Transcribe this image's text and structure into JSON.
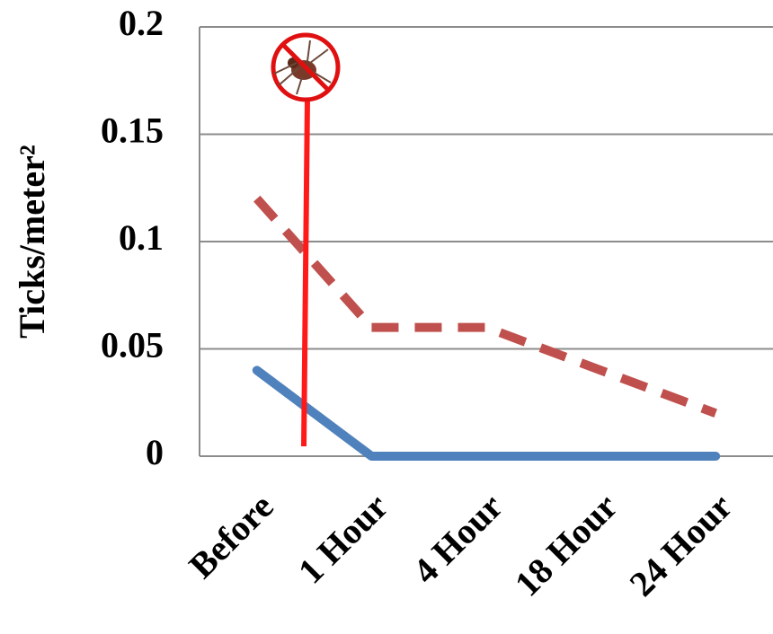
{
  "chart_data": {
    "type": "line",
    "y_label": "Ticks/meter²",
    "categories": [
      "Before",
      "1 Hour",
      "4 Hour",
      "18 Hour",
      "24 Hour"
    ],
    "series": [
      {
        "color": "#4f81bd",
        "style": "solid",
        "values": [
          0.04,
          0,
          0,
          0,
          0
        ]
      },
      {
        "color": "#c0504d",
        "style": "dashed",
        "values": [
          0.12,
          0.06,
          0.06,
          0.04,
          0.02
        ]
      }
    ],
    "ylim": [
      0,
      0.2
    ],
    "yticks": [
      0,
      0.05,
      0.1,
      0.15,
      0.2
    ],
    "grid": true
  }
}
